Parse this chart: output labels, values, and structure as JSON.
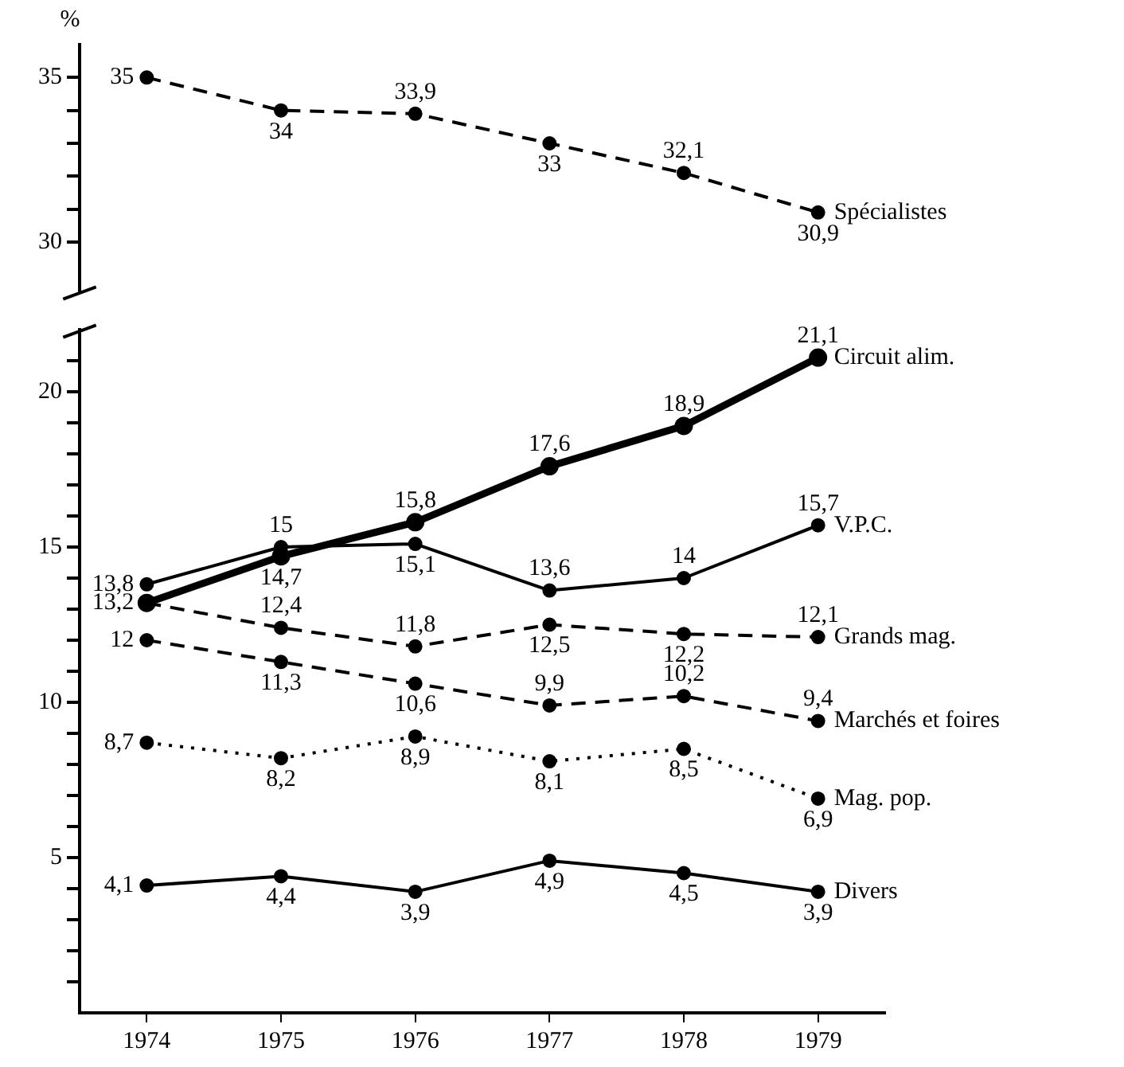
{
  "chart_data": [
    {
      "type": "line",
      "ylabel": "%",
      "categories": [
        "1974",
        "1975",
        "1976",
        "1977",
        "1978",
        "1979"
      ],
      "ylim": [
        28.5,
        36
      ],
      "yticks": [
        30,
        {
          "value": 31,
          "label": null
        },
        {
          "value": 32,
          "label": null
        },
        {
          "value": 33,
          "label": null
        },
        {
          "value": 34,
          "label": null
        },
        35
      ],
      "tick_labels": "y",
      "marker": "circle",
      "series": [
        {
          "name": "Spécialistes",
          "color": "#000000",
          "line_style": "dashed",
          "values": [
            35,
            34,
            33.9,
            33,
            32.1,
            30.9
          ],
          "value_labels": [
            "35",
            "34",
            "33,9",
            "33",
            "32,1",
            "30,9"
          ]
        }
      ]
    },
    {
      "type": "line",
      "categories": [
        "1974",
        "1975",
        "1976",
        "1977",
        "1978",
        "1979"
      ],
      "ylim": [
        0,
        22
      ],
      "yticks": [
        {
          "value": 1,
          "label": null
        },
        {
          "value": 2,
          "label": null
        },
        {
          "value": 3,
          "label": null
        },
        {
          "value": 4,
          "label": null
        },
        5,
        {
          "value": 6,
          "label": null
        },
        {
          "value": 7,
          "label": null
        },
        {
          "value": 8,
          "label": null
        },
        {
          "value": 9,
          "label": null
        },
        10,
        {
          "value": 11,
          "label": null
        },
        {
          "value": 12,
          "label": null
        },
        {
          "value": 13,
          "label": null
        },
        {
          "value": 14,
          "label": null
        },
        15,
        {
          "value": 16,
          "label": null
        },
        {
          "value": 17,
          "label": null
        },
        {
          "value": 18,
          "label": null
        },
        {
          "value": 19,
          "label": null
        },
        20,
        {
          "value": 21,
          "label": null
        }
      ],
      "marker": "circle",
      "series": [
        {
          "name": "Circuit alim.",
          "color": "#000000",
          "line_style": "solid",
          "values": [
            13.2,
            14.7,
            15.8,
            17.6,
            18.9,
            21.1
          ],
          "value_labels": [
            "13,2",
            "14,7",
            "15,8",
            "17,6",
            "18,9",
            "21,1"
          ]
        },
        {
          "name": "V.P.C.",
          "color": "#000000",
          "line_style": "solid",
          "values": [
            13.8,
            15,
            15.1,
            13.6,
            14,
            15.7
          ],
          "value_labels": [
            "13,8",
            "15",
            "15,1",
            "13,6",
            "14",
            "15,7"
          ]
        },
        {
          "name": "Grands mag.",
          "color": "#000000",
          "line_style": "dashed",
          "values": [
            13.2,
            12.4,
            11.8,
            12.5,
            12.2,
            12.1
          ],
          "value_labels": [
            null,
            "12,4",
            "11,8",
            "12,5",
            "12,2",
            "12,1"
          ]
        },
        {
          "name": "Marchés et foires",
          "color": "#000000",
          "line_style": "dashed",
          "values": [
            12,
            11.3,
            10.6,
            9.9,
            10.2,
            9.4
          ],
          "value_labels": [
            "12",
            "11,3",
            "10,6",
            "9,9",
            "10,2",
            "9,4"
          ]
        },
        {
          "name": "Mag. pop.",
          "color": "#000000",
          "line_style": "dotted",
          "values": [
            8.7,
            8.2,
            8.9,
            8.1,
            8.5,
            6.9
          ],
          "value_labels": [
            "8,7",
            "8,2",
            "8,9",
            "8,1",
            "8,5",
            "6,9"
          ]
        },
        {
          "name": "Divers",
          "color": "#000000",
          "line_style": "solid",
          "values": [
            4.1,
            4.4,
            3.9,
            4.9,
            4.5,
            3.9
          ],
          "value_labels": [
            "4,1",
            "4,4",
            "3,9",
            "4,9",
            "4,5",
            "3,9"
          ]
        }
      ]
    }
  ]
}
